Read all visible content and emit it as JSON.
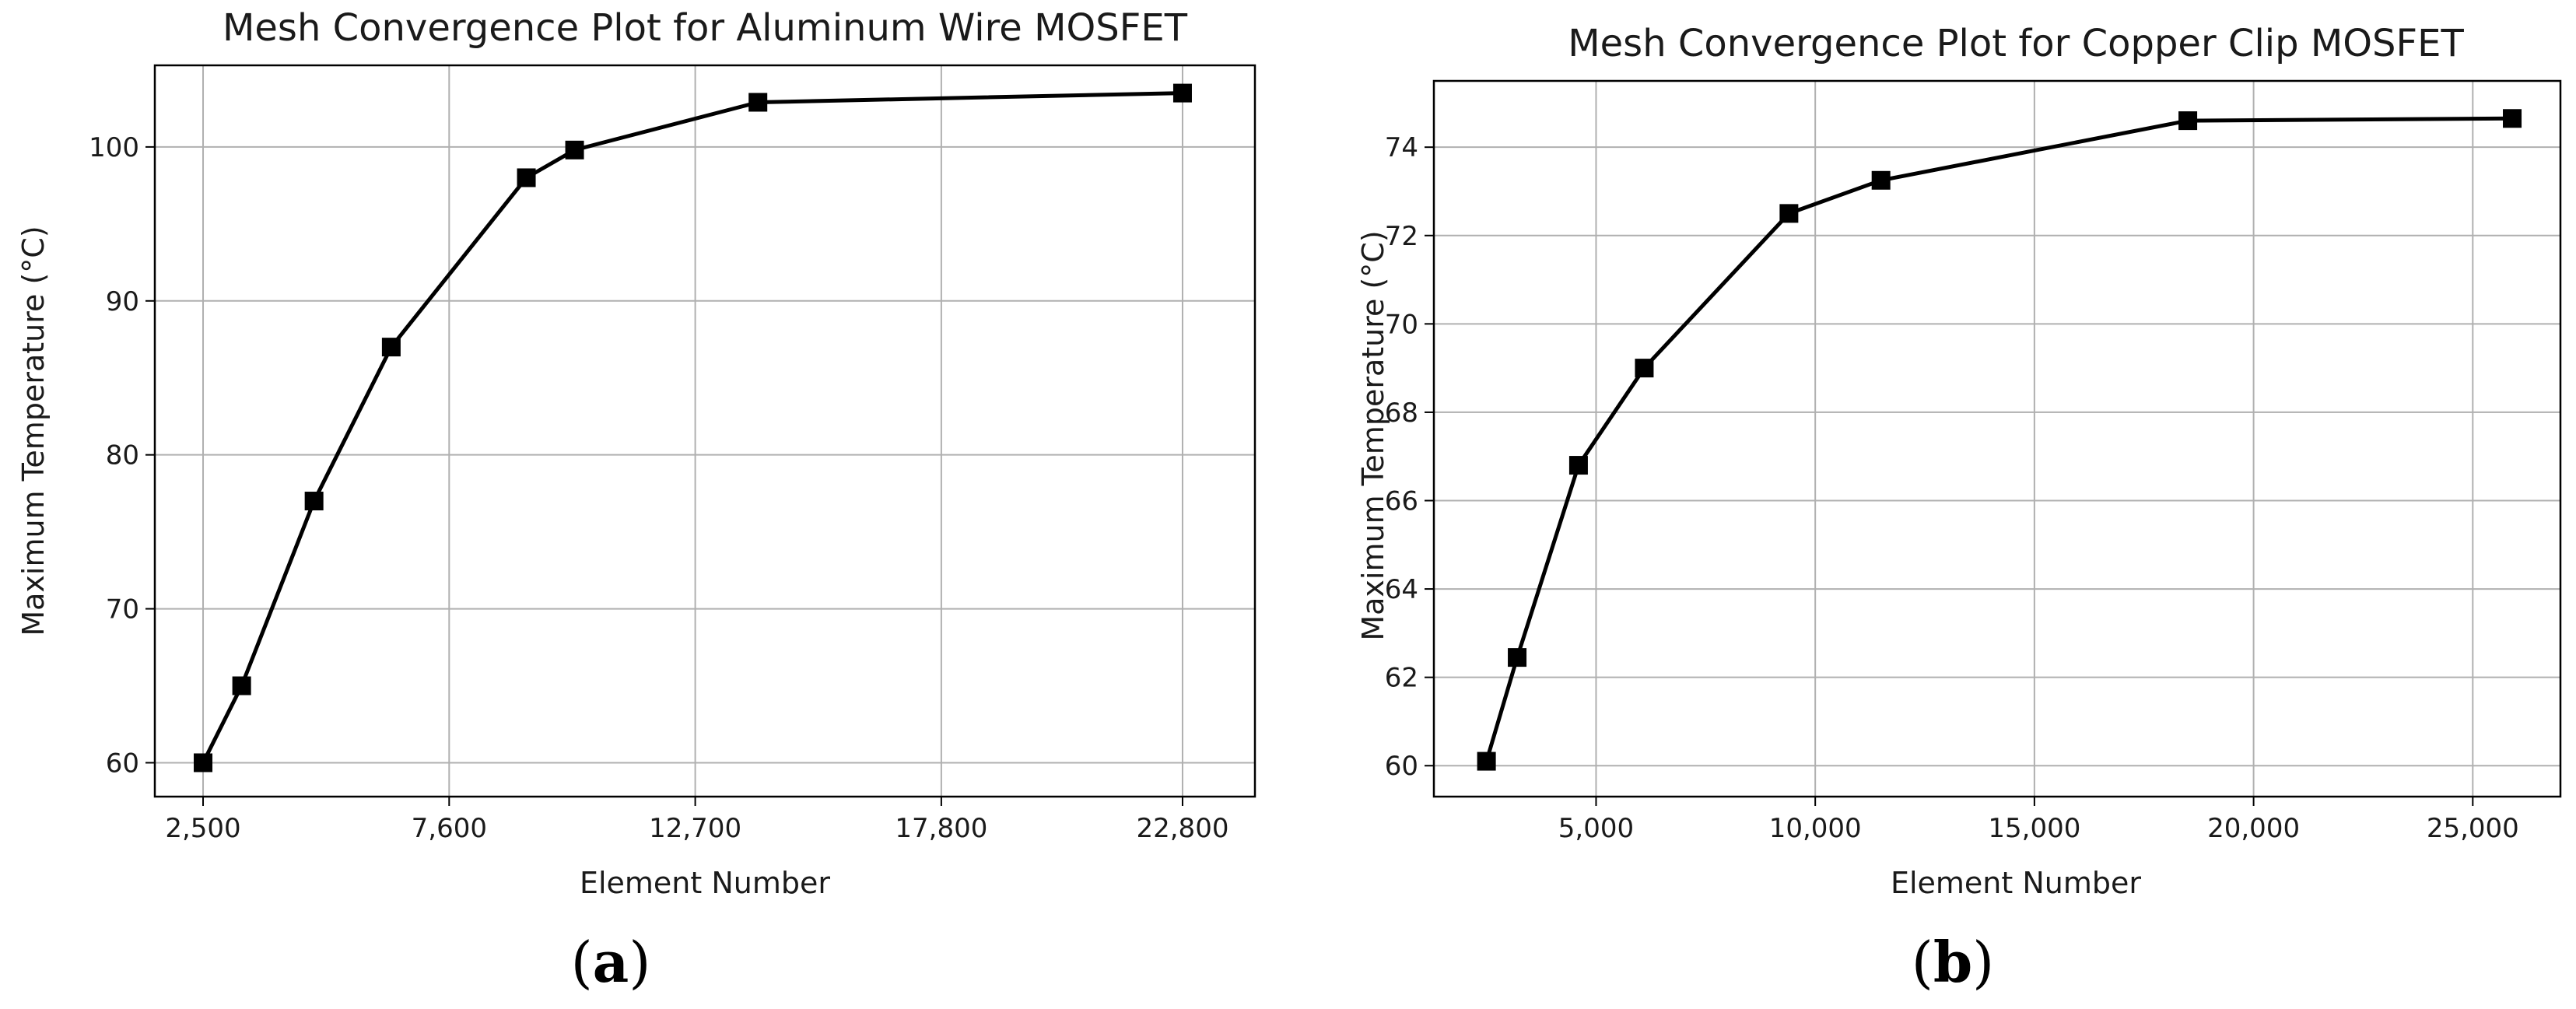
{
  "colors": {
    "series": "#000000",
    "grid": "#b0b0b0",
    "background": "#ffffff"
  },
  "panels": [
    {
      "open": "(",
      "letter": "a",
      "close": ")"
    },
    {
      "open": "(",
      "letter": "b",
      "close": ")"
    }
  ],
  "chart_data": [
    {
      "type": "line",
      "title": "Mesh Convergence Plot for Aluminum Wire MOSFET",
      "xlabel": "Element Number",
      "ylabel": "Maximum Temperature (°C)",
      "xlim": [
        1500,
        24300
      ],
      "ylim": [
        57.8,
        105.3
      ],
      "xticks": [
        2500,
        7600,
        12700,
        17800,
        22800
      ],
      "xtick_labels": [
        "2,500",
        "7,600",
        "12,700",
        "17,800",
        "22,800"
      ],
      "yticks": [
        60,
        70,
        80,
        90,
        100
      ],
      "ytick_labels": [
        "60",
        "70",
        "80",
        "90",
        "100"
      ],
      "grid": true,
      "marker": "square",
      "series": [
        {
          "x": [
            2500,
            3300,
            4800,
            6400,
            9200,
            10200,
            14000,
            22800
          ],
          "y": [
            60,
            65,
            77,
            87,
            98,
            99.8,
            102.9,
            103.5
          ]
        }
      ]
    },
    {
      "type": "line",
      "title": "Mesh Convergence Plot for Copper Clip MOSFET",
      "xlabel": "Element Number",
      "ylabel": "Maximum Temperature (°C)",
      "xlim": [
        1300,
        27000
      ],
      "ylim": [
        59.3,
        75.5
      ],
      "xticks": [
        5000,
        10000,
        15000,
        20000,
        25000
      ],
      "xtick_labels": [
        "5,000",
        "10,000",
        "15,000",
        "20,000",
        "25,000"
      ],
      "yticks": [
        60,
        62,
        64,
        66,
        68,
        70,
        72,
        74
      ],
      "ytick_labels": [
        "60",
        "62",
        "64",
        "66",
        "68",
        "70",
        "72",
        "74"
      ],
      "grid": true,
      "marker": "square",
      "series": [
        {
          "x": [
            2500,
            3200,
            4600,
            6100,
            9400,
            11500,
            18500,
            25900
          ],
          "y": [
            60.1,
            62.45,
            66.8,
            69.0,
            72.5,
            73.25,
            74.6,
            74.65
          ]
        }
      ]
    }
  ]
}
